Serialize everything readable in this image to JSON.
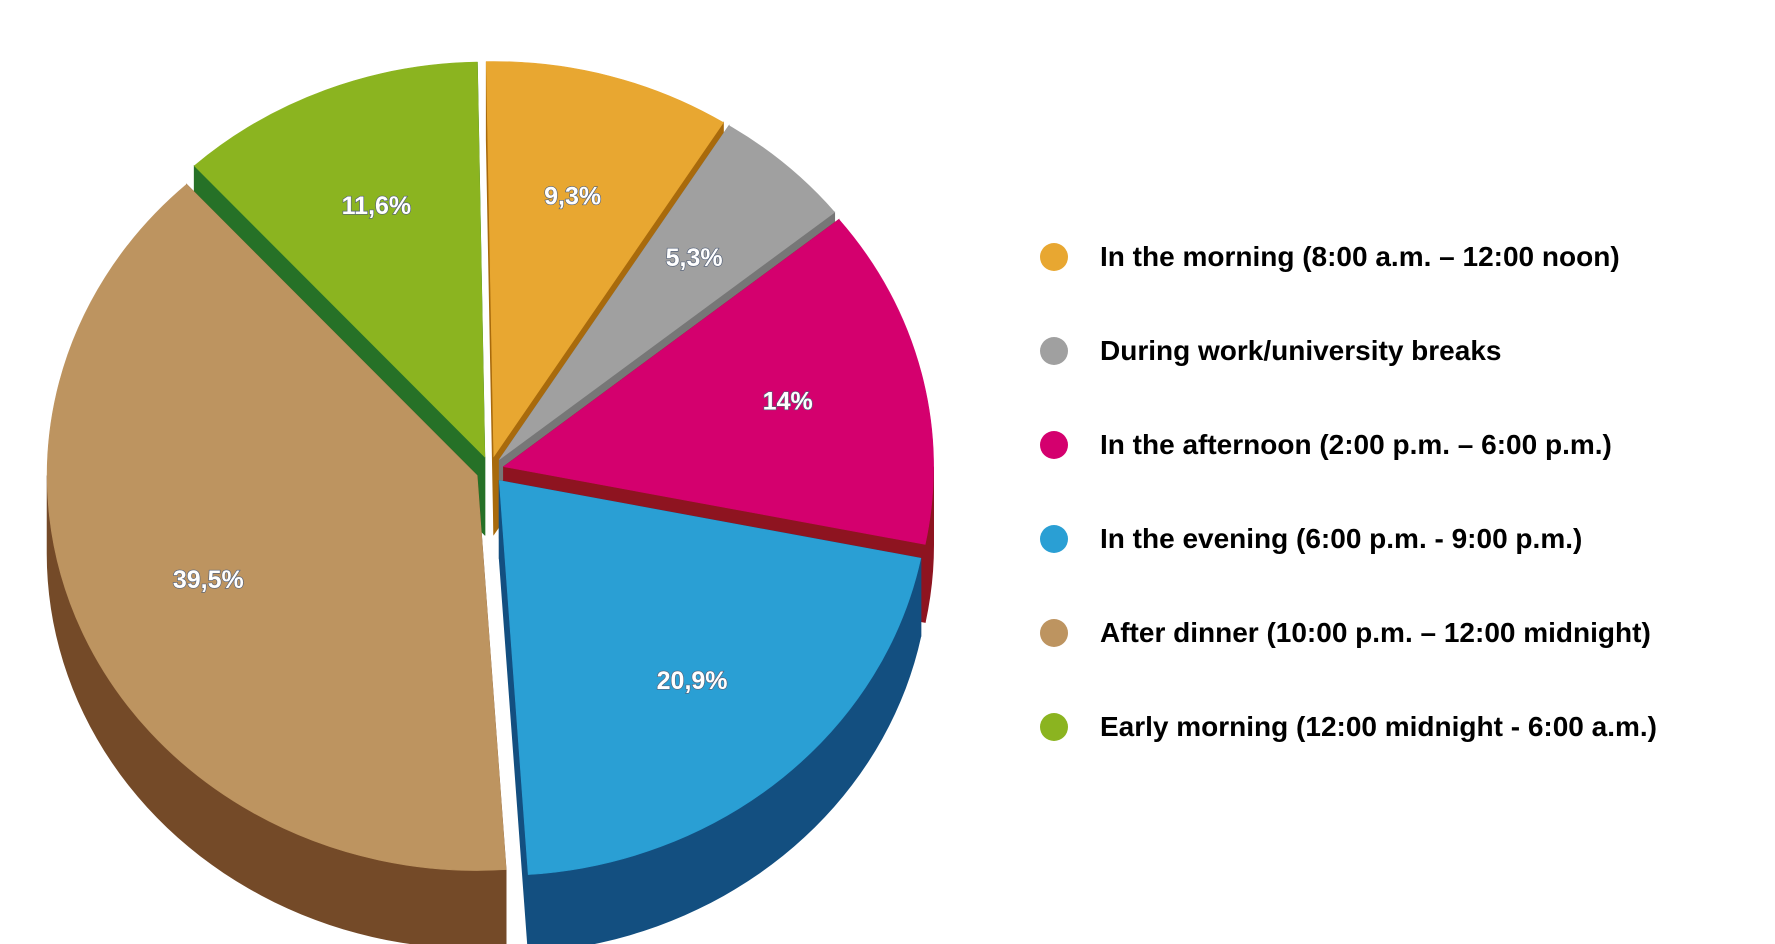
{
  "chart_data": {
    "type": "pie",
    "title": "",
    "legend_position": "right",
    "three_d": true,
    "exploded": true,
    "slices": [
      {
        "name": "In the morning (8:00 a.m. – 12:00 noon)",
        "value": 9.3,
        "label": "9,3%",
        "color": "#E8A731",
        "side_color": "#A86A0C"
      },
      {
        "name": "During work/university breaks",
        "value": 5.3,
        "label": "5,3%",
        "color": "#A0A0A0",
        "side_color": "#777777"
      },
      {
        "name": "In the afternoon (2:00 p.m. – 6:00 p.m.)",
        "value": 14,
        "label": "14%",
        "color": "#D4006E",
        "side_color": "#8E1420"
      },
      {
        "name": "In the evening (6:00 p.m. - 9:00 p.m.)",
        "value": 20.9,
        "label": "20,9%",
        "color": "#2A9FD4",
        "side_color": "#134F80"
      },
      {
        "name": "After dinner (10:00 p.m. – 12:00 midnight)",
        "value": 39.5,
        "label": "39,5%",
        "color": "#BD9460",
        "side_color": "#744A28"
      },
      {
        "name": "Early morning (12:00 midnight - 6:00 a.m.)",
        "value": 11.6,
        "label": "11,6%",
        "color": "#8BB420",
        "side_color": "#267127"
      }
    ]
  }
}
